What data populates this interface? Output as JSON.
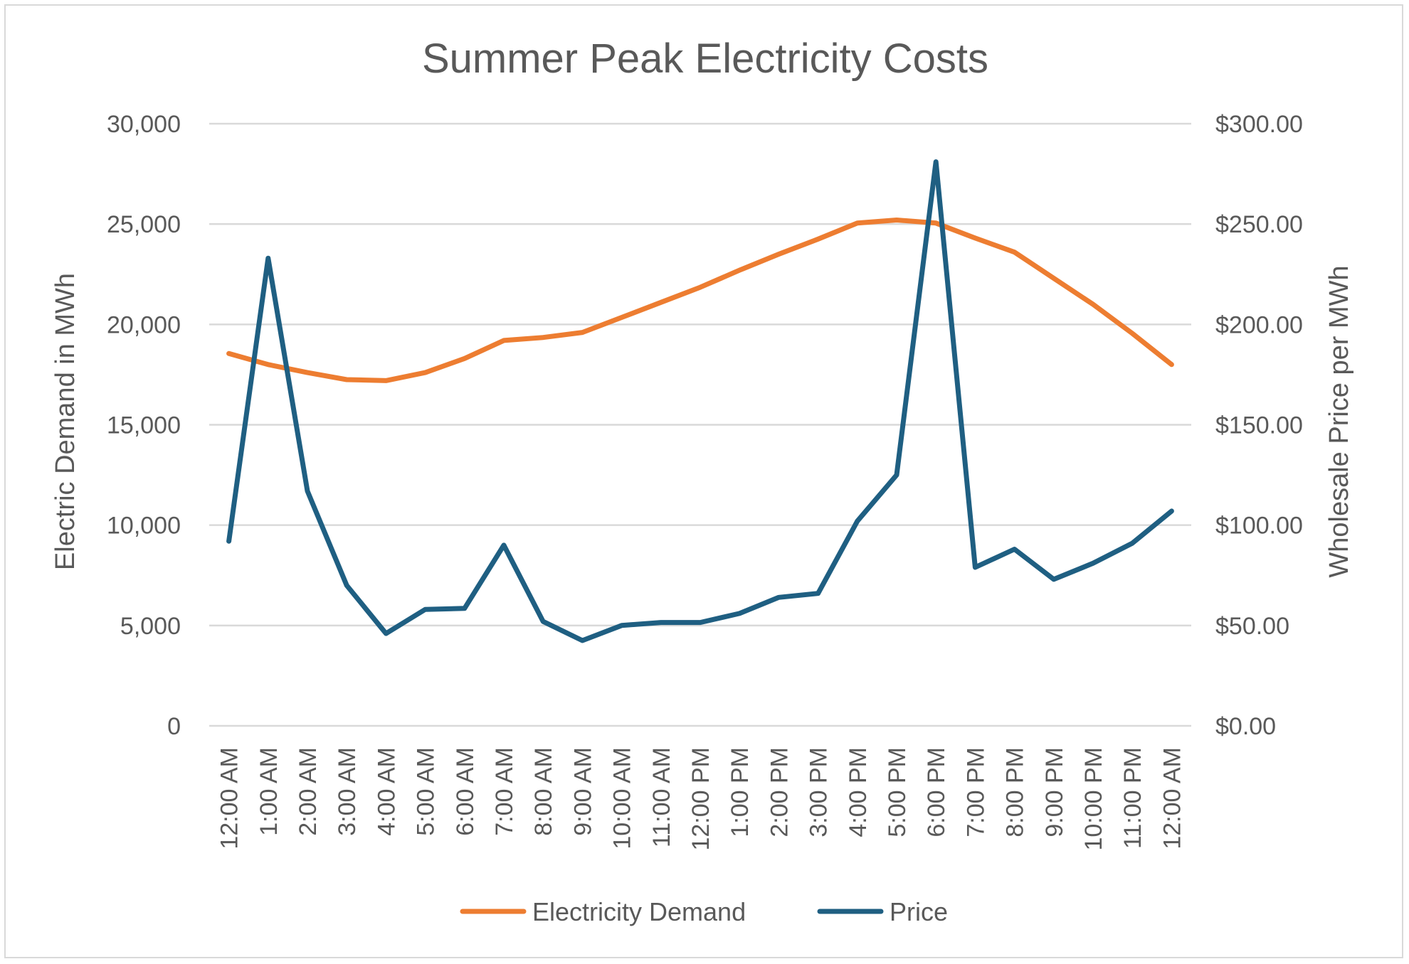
{
  "chart_data": {
    "type": "line",
    "title": "Summer Peak Electricity Costs",
    "categories": [
      "12:00 AM",
      "1:00 AM",
      "2:00 AM",
      "3:00 AM",
      "4:00 AM",
      "5:00 AM",
      "6:00 AM",
      "7:00 AM",
      "8:00 AM",
      "9:00 AM",
      "10:00 AM",
      "11:00 AM",
      "12:00 PM",
      "1:00 PM",
      "2:00 PM",
      "3:00 PM",
      "4:00 PM",
      "5:00 PM",
      "6:00 PM",
      "7:00 PM",
      "8:00 PM",
      "9:00 PM",
      "10:00 PM",
      "11:00 PM",
      "12:00 AM"
    ],
    "y_left": {
      "label": "Electric Demand in MWh",
      "ylim": [
        0,
        30000
      ],
      "ticks": [
        0,
        5000,
        10000,
        15000,
        20000,
        25000,
        30000
      ],
      "tick_labels": [
        "0",
        "5,000",
        "10,000",
        "15,000",
        "20,000",
        "25,000",
        "30,000"
      ]
    },
    "y_right": {
      "label": "Wholesale Price per MWh",
      "ylim": [
        0,
        300
      ],
      "ticks": [
        0,
        50,
        100,
        150,
        200,
        250,
        300
      ],
      "tick_labels": [
        "$0.00",
        "$50.00",
        "$100.00",
        "$150.00",
        "$200.00",
        "$250.00",
        "$300.00"
      ]
    },
    "grid": true,
    "legend_position": "bottom",
    "series": [
      {
        "name": "Electricity Demand",
        "axis": "left",
        "color": "#ED7D31",
        "values": [
          18550,
          18000,
          17600,
          17250,
          17200,
          17600,
          18300,
          19200,
          19350,
          19600,
          20350,
          21100,
          21850,
          22700,
          23500,
          24250,
          25050,
          25200,
          25050,
          24300,
          23600,
          22300,
          21000,
          19550,
          18000
        ]
      },
      {
        "name": "Price",
        "axis": "right",
        "color": "#1F5F82",
        "values": [
          92,
          233,
          117,
          70,
          46,
          58,
          58.5,
          90,
          52,
          42.5,
          50,
          51.5,
          51.5,
          56,
          64,
          66,
          102,
          125,
          281,
          79,
          88,
          73,
          81,
          91,
          107
        ]
      }
    ]
  }
}
